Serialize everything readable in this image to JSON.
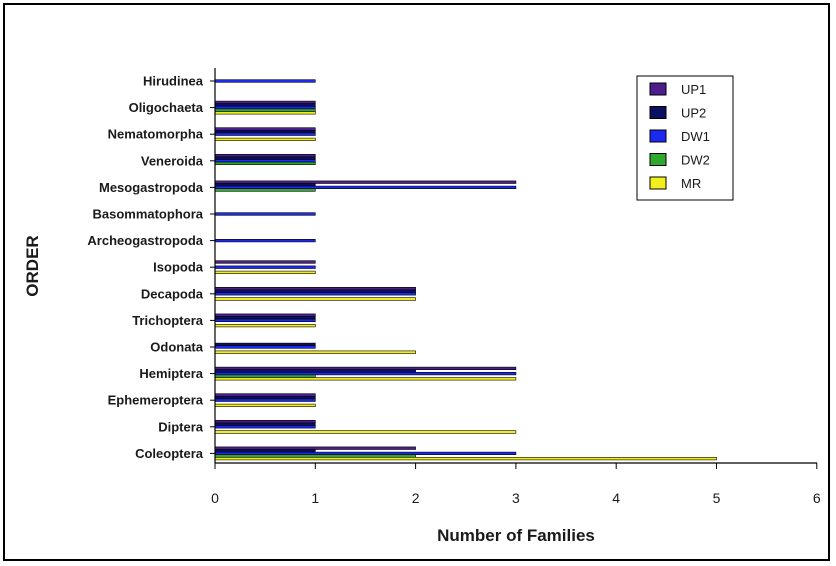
{
  "chart_data": {
    "type": "bar",
    "orientation": "horizontal",
    "title": "",
    "xlabel": "Number of Families",
    "ylabel": "ORDER",
    "xlim": [
      0,
      6
    ],
    "xticks": [
      0,
      1,
      2,
      3,
      4,
      5,
      6
    ],
    "grid": false,
    "legend_position": "top-right",
    "categories": [
      "Hirudinea",
      "Oligochaeta",
      "Nematomorpha",
      "Veneroida",
      "Mesogastropoda",
      "Basommatophora",
      "Archeogastropoda",
      "Isopoda",
      "Decapoda",
      "Trichoptera",
      "Odonata",
      "Hemiptera",
      "Ephemeroptera",
      "Diptera",
      "Coleoptera"
    ],
    "series": [
      {
        "name": "UP1",
        "color": "#4b1e8c",
        "values": [
          0,
          1,
          1,
          1,
          3,
          0,
          0,
          1,
          2,
          1,
          0,
          3,
          1,
          1,
          2
        ]
      },
      {
        "name": "UP2",
        "color": "#0c1060",
        "values": [
          0,
          1,
          1,
          1,
          1,
          0,
          0,
          0,
          2,
          1,
          1,
          2,
          1,
          1,
          1
        ]
      },
      {
        "name": "DW1",
        "color": "#1a2af0",
        "values": [
          1,
          1,
          1,
          1,
          3,
          1,
          1,
          1,
          2,
          1,
          1,
          3,
          1,
          1,
          3
        ]
      },
      {
        "name": "DW2",
        "color": "#2ea82e",
        "values": [
          0,
          1,
          0,
          1,
          1,
          0,
          0,
          0,
          0,
          0,
          0,
          1,
          0,
          0,
          2
        ]
      },
      {
        "name": "MR",
        "color": "#f2ee1e",
        "values": [
          0,
          1,
          1,
          0,
          0,
          0,
          0,
          1,
          2,
          1,
          2,
          3,
          1,
          3,
          5
        ]
      }
    ]
  }
}
